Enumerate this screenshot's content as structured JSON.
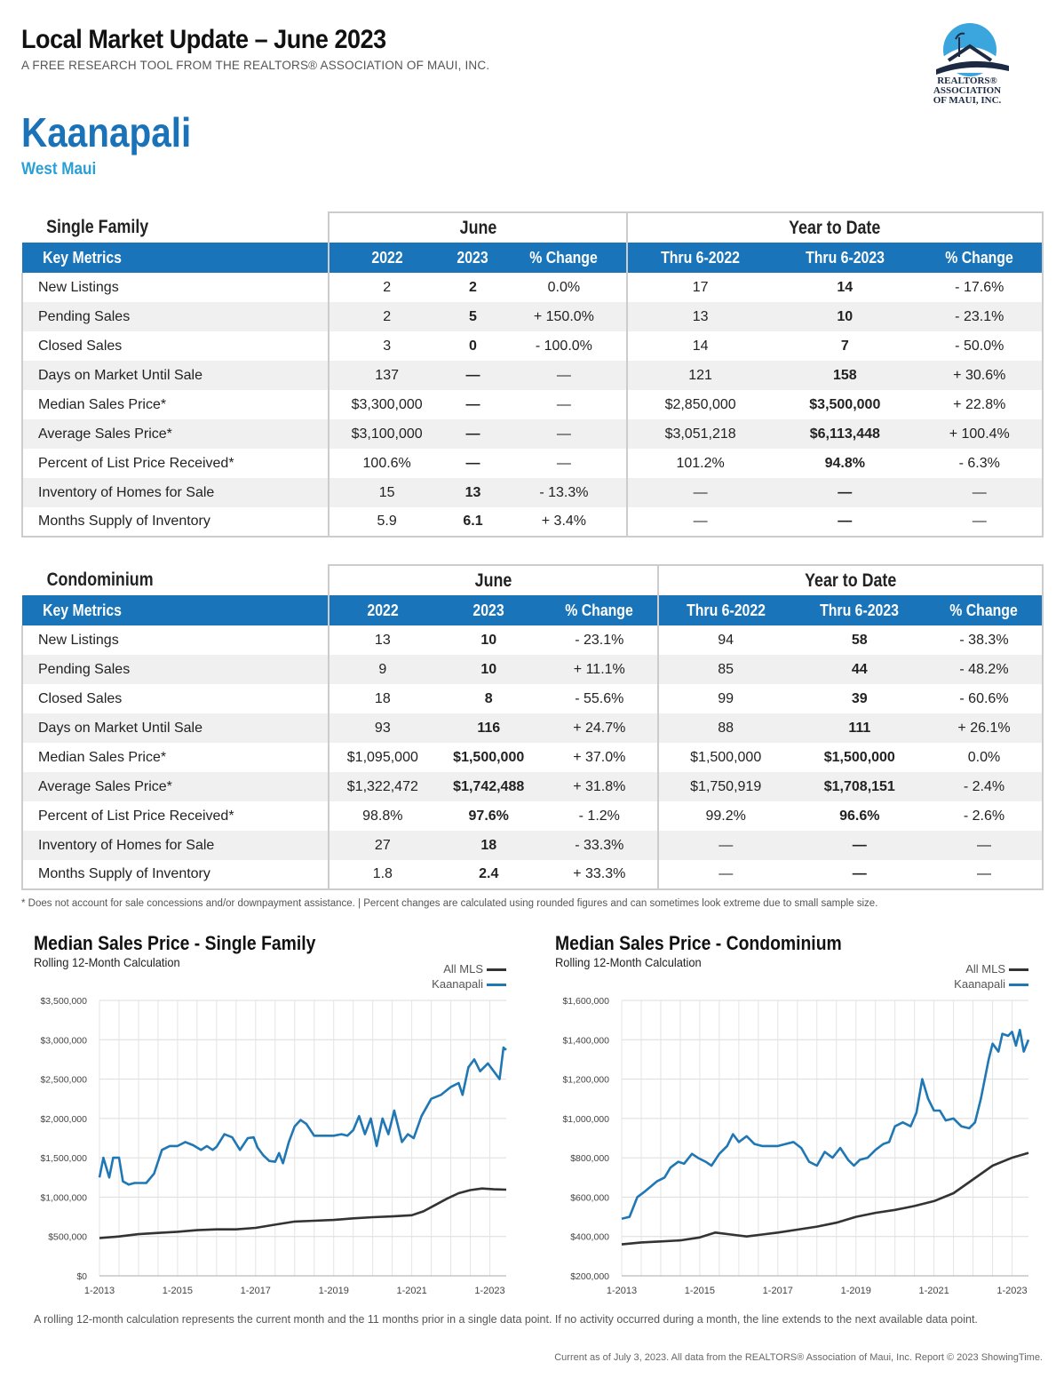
{
  "header": {
    "title": "Local Market Update – June 2023",
    "subtitle": "A FREE RESEARCH TOOL FROM THE REALTORS® ASSOCIATION OF MAUI, INC.",
    "logo_line1": "REALTORS® ASSOCIATION",
    "logo_line2": "OF MAUI, INC."
  },
  "area": {
    "name": "Kaanapali",
    "region": "West Maui"
  },
  "col_headers": {
    "key_metrics": "Key Metrics",
    "month": "June",
    "ytd": "Year to Date",
    "y1": "2022",
    "y2": "2023",
    "pct": "% Change",
    "t1": "Thru 6-2022",
    "t2": "Thru 6-2023"
  },
  "single_family": {
    "title": "Single Family",
    "rows": [
      {
        "label": "New Listings",
        "v1": "2",
        "v2": "2",
        "pc": "0.0%",
        "y1": "17",
        "y2": "14",
        "ypc": "- 17.6%"
      },
      {
        "label": "Pending Sales",
        "v1": "2",
        "v2": "5",
        "pc": "+ 150.0%",
        "y1": "13",
        "y2": "10",
        "ypc": "- 23.1%"
      },
      {
        "label": "Closed Sales",
        "v1": "3",
        "v2": "0",
        "pc": "- 100.0%",
        "y1": "14",
        "y2": "7",
        "ypc": "- 50.0%"
      },
      {
        "label": "Days on Market Until Sale",
        "v1": "137",
        "v2": "—",
        "pc": "—",
        "y1": "121",
        "y2": "158",
        "ypc": "+ 30.6%"
      },
      {
        "label": "Median Sales Price*",
        "v1": "$3,300,000",
        "v2": "—",
        "pc": "—",
        "y1": "$2,850,000",
        "y2": "$3,500,000",
        "ypc": "+ 22.8%"
      },
      {
        "label": "Average Sales Price*",
        "v1": "$3,100,000",
        "v2": "—",
        "pc": "—",
        "y1": "$3,051,218",
        "y2": "$6,113,448",
        "ypc": "+ 100.4%"
      },
      {
        "label": "Percent of List Price Received*",
        "v1": "100.6%",
        "v2": "—",
        "pc": "—",
        "y1": "101.2%",
        "y2": "94.8%",
        "ypc": "- 6.3%"
      },
      {
        "label": "Inventory of Homes for Sale",
        "v1": "15",
        "v2": "13",
        "pc": "- 13.3%",
        "y1": "—",
        "y2": "—",
        "ypc": "—"
      },
      {
        "label": "Months Supply of Inventory",
        "v1": "5.9",
        "v2": "6.1",
        "pc": "+ 3.4%",
        "y1": "—",
        "y2": "—",
        "ypc": "—"
      }
    ]
  },
  "condominium": {
    "title": "Condominium",
    "rows": [
      {
        "label": "New Listings",
        "v1": "13",
        "v2": "10",
        "pc": "- 23.1%",
        "y1": "94",
        "y2": "58",
        "ypc": "- 38.3%"
      },
      {
        "label": "Pending Sales",
        "v1": "9",
        "v2": "10",
        "pc": "+ 11.1%",
        "y1": "85",
        "y2": "44",
        "ypc": "- 48.2%"
      },
      {
        "label": "Closed Sales",
        "v1": "18",
        "v2": "8",
        "pc": "- 55.6%",
        "y1": "99",
        "y2": "39",
        "ypc": "- 60.6%"
      },
      {
        "label": "Days on Market Until Sale",
        "v1": "93",
        "v2": "116",
        "pc": "+ 24.7%",
        "y1": "88",
        "y2": "111",
        "ypc": "+ 26.1%"
      },
      {
        "label": "Median Sales Price*",
        "v1": "$1,095,000",
        "v2": "$1,500,000",
        "pc": "+ 37.0%",
        "y1": "$1,500,000",
        "y2": "$1,500,000",
        "ypc": "0.0%"
      },
      {
        "label": "Average Sales Price*",
        "v1": "$1,322,472",
        "v2": "$1,742,488",
        "pc": "+ 31.8%",
        "y1": "$1,750,919",
        "y2": "$1,708,151",
        "ypc": "- 2.4%"
      },
      {
        "label": "Percent of List Price Received*",
        "v1": "98.8%",
        "v2": "97.6%",
        "pc": "- 1.2%",
        "y1": "99.2%",
        "y2": "96.6%",
        "ypc": "- 2.6%"
      },
      {
        "label": "Inventory of Homes for Sale",
        "v1": "27",
        "v2": "18",
        "pc": "- 33.3%",
        "y1": "—",
        "y2": "—",
        "ypc": "—"
      },
      {
        "label": "Months Supply of Inventory",
        "v1": "1.8",
        "v2": "2.4",
        "pc": "+ 33.3%",
        "y1": "—",
        "y2": "—",
        "ypc": "—"
      }
    ]
  },
  "footnote": "* Does not account for sale concessions and/or downpayment assistance. | Percent changes are calculated using rounded figures and can sometimes look extreme due to small sample size.",
  "bottom_note": "A rolling 12-month calculation represents the current month and the 11 months prior in a single data point. If no activity occurred during a month, the line extends to the next available data point.",
  "copyright": "Current as of July 3, 2023. All data from the REALTORS® Association of Maui, Inc. Report © 2023 ShowingTime.",
  "colors": {
    "accent": "#1a74b9",
    "kaanapali_line": "#1f77b4",
    "allmls_line": "#333333"
  },
  "chart_data": [
    {
      "type": "line",
      "title": "Median Sales Price - Single Family",
      "subtitle": "Rolling 12-Month Calculation",
      "x_ticks": [
        "1-2013",
        "1-2015",
        "1-2017",
        "1-2019",
        "1-2021",
        "1-2023"
      ],
      "y_ticks": [
        "$0",
        "$500,000",
        "$1,000,000",
        "$1,500,000",
        "$2,000,000",
        "$2,500,000",
        "$3,000,000",
        "$3,500,000"
      ],
      "ylim": [
        0,
        3500000
      ],
      "xlim": [
        2013.0,
        2023.42
      ],
      "series": [
        {
          "name": "All MLS",
          "points": [
            [
              2013.0,
              480000
            ],
            [
              2013.5,
              500000
            ],
            [
              2014.0,
              530000
            ],
            [
              2014.5,
              545000
            ],
            [
              2015.0,
              560000
            ],
            [
              2015.5,
              580000
            ],
            [
              2016.0,
              590000
            ],
            [
              2016.5,
              590000
            ],
            [
              2017.0,
              610000
            ],
            [
              2017.5,
              650000
            ],
            [
              2018.0,
              690000
            ],
            [
              2018.5,
              700000
            ],
            [
              2019.0,
              710000
            ],
            [
              2019.5,
              730000
            ],
            [
              2020.0,
              745000
            ],
            [
              2020.5,
              755000
            ],
            [
              2021.0,
              770000
            ],
            [
              2021.3,
              820000
            ],
            [
              2021.6,
              900000
            ],
            [
              2021.9,
              980000
            ],
            [
              2022.2,
              1050000
            ],
            [
              2022.5,
              1090000
            ],
            [
              2022.8,
              1110000
            ],
            [
              2023.1,
              1100000
            ],
            [
              2023.42,
              1095000
            ]
          ]
        },
        {
          "name": "Kaanapali",
          "points": [
            [
              2013.0,
              1250000
            ],
            [
              2013.1,
              1500000
            ],
            [
              2013.25,
              1250000
            ],
            [
              2013.35,
              1500000
            ],
            [
              2013.5,
              1500000
            ],
            [
              2013.6,
              1200000
            ],
            [
              2013.75,
              1160000
            ],
            [
              2013.9,
              1180000
            ],
            [
              2014.2,
              1180000
            ],
            [
              2014.4,
              1300000
            ],
            [
              2014.6,
              1600000
            ],
            [
              2014.8,
              1650000
            ],
            [
              2015.0,
              1650000
            ],
            [
              2015.2,
              1700000
            ],
            [
              2015.4,
              1660000
            ],
            [
              2015.6,
              1600000
            ],
            [
              2015.75,
              1650000
            ],
            [
              2015.9,
              1600000
            ],
            [
              2016.0,
              1640000
            ],
            [
              2016.2,
              1800000
            ],
            [
              2016.4,
              1760000
            ],
            [
              2016.6,
              1600000
            ],
            [
              2016.8,
              1750000
            ],
            [
              2016.95,
              1760000
            ],
            [
              2017.05,
              1630000
            ],
            [
              2017.2,
              1530000
            ],
            [
              2017.35,
              1460000
            ],
            [
              2017.5,
              1450000
            ],
            [
              2017.6,
              1560000
            ],
            [
              2017.7,
              1430000
            ],
            [
              2017.85,
              1700000
            ],
            [
              2018.0,
              1900000
            ],
            [
              2018.15,
              1980000
            ],
            [
              2018.3,
              1930000
            ],
            [
              2018.5,
              1780000
            ],
            [
              2018.7,
              1780000
            ],
            [
              2019.0,
              1780000
            ],
            [
              2019.2,
              1800000
            ],
            [
              2019.35,
              1780000
            ],
            [
              2019.5,
              1850000
            ],
            [
              2019.65,
              2030000
            ],
            [
              2019.8,
              1800000
            ],
            [
              2019.95,
              2000000
            ],
            [
              2020.1,
              1650000
            ],
            [
              2020.25,
              2000000
            ],
            [
              2020.4,
              1800000
            ],
            [
              2020.55,
              2100000
            ],
            [
              2020.75,
              1700000
            ],
            [
              2020.9,
              1800000
            ],
            [
              2021.05,
              1750000
            ],
            [
              2021.25,
              2030000
            ],
            [
              2021.5,
              2250000
            ],
            [
              2021.75,
              2300000
            ],
            [
              2022.0,
              2400000
            ],
            [
              2022.2,
              2450000
            ],
            [
              2022.3,
              2300000
            ],
            [
              2022.45,
              2650000
            ],
            [
              2022.6,
              2750000
            ],
            [
              2022.75,
              2600000
            ],
            [
              2022.95,
              2700000
            ],
            [
              2023.1,
              2600000
            ],
            [
              2023.25,
              2500000
            ],
            [
              2023.35,
              2900000
            ],
            [
              2023.42,
              2870000
            ]
          ]
        }
      ]
    },
    {
      "type": "line",
      "title": "Median Sales Price - Condominium",
      "subtitle": "Rolling 12-Month Calculation",
      "x_ticks": [
        "1-2013",
        "1-2015",
        "1-2017",
        "1-2019",
        "1-2021",
        "1-2023"
      ],
      "y_ticks": [
        "$200,000",
        "$400,000",
        "$600,000",
        "$800,000",
        "$1,000,000",
        "$1,200,000",
        "$1,400,000",
        "$1,600,000"
      ],
      "ylim": [
        200000,
        1600000
      ],
      "xlim": [
        2013.0,
        2023.42
      ],
      "series": [
        {
          "name": "All MLS",
          "points": [
            [
              2013.0,
              360000
            ],
            [
              2013.5,
              370000
            ],
            [
              2014.0,
              375000
            ],
            [
              2014.5,
              380000
            ],
            [
              2015.0,
              395000
            ],
            [
              2015.4,
              420000
            ],
            [
              2015.8,
              410000
            ],
            [
              2016.2,
              400000
            ],
            [
              2016.6,
              410000
            ],
            [
              2017.0,
              420000
            ],
            [
              2017.5,
              435000
            ],
            [
              2018.0,
              450000
            ],
            [
              2018.5,
              470000
            ],
            [
              2019.0,
              500000
            ],
            [
              2019.5,
              520000
            ],
            [
              2020.0,
              535000
            ],
            [
              2020.5,
              555000
            ],
            [
              2021.0,
              580000
            ],
            [
              2021.5,
              620000
            ],
            [
              2022.0,
              690000
            ],
            [
              2022.5,
              760000
            ],
            [
              2023.0,
              800000
            ],
            [
              2023.42,
              825000
            ]
          ]
        },
        {
          "name": "Kaanapali",
          "points": [
            [
              2013.0,
              490000
            ],
            [
              2013.2,
              500000
            ],
            [
              2013.4,
              600000
            ],
            [
              2013.6,
              630000
            ],
            [
              2013.9,
              680000
            ],
            [
              2014.1,
              700000
            ],
            [
              2014.25,
              750000
            ],
            [
              2014.45,
              780000
            ],
            [
              2014.6,
              770000
            ],
            [
              2014.8,
              820000
            ],
            [
              2014.95,
              800000
            ],
            [
              2015.15,
              780000
            ],
            [
              2015.3,
              760000
            ],
            [
              2015.5,
              820000
            ],
            [
              2015.7,
              860000
            ],
            [
              2015.85,
              920000
            ],
            [
              2016.0,
              880000
            ],
            [
              2016.2,
              910000
            ],
            [
              2016.4,
              870000
            ],
            [
              2016.6,
              860000
            ],
            [
              2016.8,
              860000
            ],
            [
              2017.0,
              860000
            ],
            [
              2017.2,
              870000
            ],
            [
              2017.4,
              880000
            ],
            [
              2017.6,
              850000
            ],
            [
              2017.8,
              780000
            ],
            [
              2018.0,
              760000
            ],
            [
              2018.2,
              830000
            ],
            [
              2018.4,
              800000
            ],
            [
              2018.6,
              850000
            ],
            [
              2018.8,
              790000
            ],
            [
              2018.95,
              760000
            ],
            [
              2019.1,
              790000
            ],
            [
              2019.3,
              800000
            ],
            [
              2019.5,
              840000
            ],
            [
              2019.7,
              870000
            ],
            [
              2019.85,
              880000
            ],
            [
              2020.0,
              960000
            ],
            [
              2020.2,
              980000
            ],
            [
              2020.4,
              960000
            ],
            [
              2020.55,
              1030000
            ],
            [
              2020.7,
              1200000
            ],
            [
              2020.85,
              1100000
            ],
            [
              2021.0,
              1040000
            ],
            [
              2021.15,
              1040000
            ],
            [
              2021.3,
              990000
            ],
            [
              2021.5,
              1000000
            ],
            [
              2021.7,
              960000
            ],
            [
              2021.9,
              950000
            ],
            [
              2022.05,
              980000
            ],
            [
              2022.2,
              1100000
            ],
            [
              2022.4,
              1300000
            ],
            [
              2022.5,
              1380000
            ],
            [
              2022.65,
              1340000
            ],
            [
              2022.75,
              1430000
            ],
            [
              2022.9,
              1420000
            ],
            [
              2023.0,
              1440000
            ],
            [
              2023.1,
              1370000
            ],
            [
              2023.2,
              1450000
            ],
            [
              2023.3,
              1340000
            ],
            [
              2023.42,
              1400000
            ]
          ]
        }
      ]
    }
  ]
}
